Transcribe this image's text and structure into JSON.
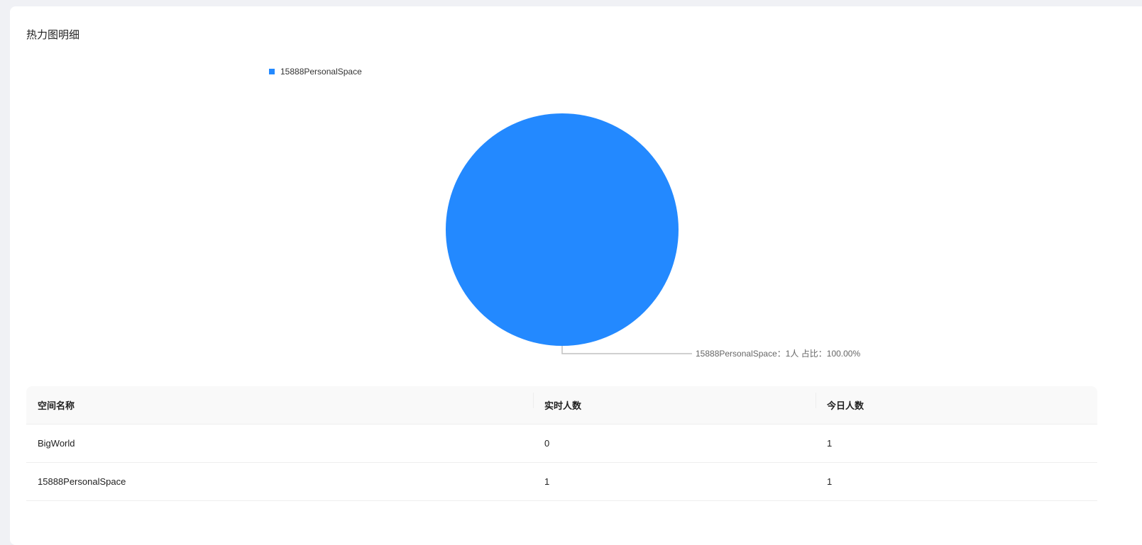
{
  "panel": {
    "title": "热力图明细"
  },
  "chart_data": {
    "type": "pie",
    "title": "",
    "legend": {
      "position": "top-left",
      "entries": [
        "15888PersonalSpace"
      ]
    },
    "slices": [
      {
        "name": "15888PersonalSpace",
        "value": 1,
        "percent": 100.0,
        "color": "#2389ff"
      }
    ],
    "labels": [
      "15888PersonalSpace：1人 占比：100.00%"
    ]
  },
  "table": {
    "headers": [
      "空间名称",
      "实时人数",
      "今日人数"
    ],
    "rows": [
      [
        "BigWorld",
        "0",
        "1"
      ],
      [
        "15888PersonalSpace",
        "1",
        "1"
      ]
    ]
  }
}
